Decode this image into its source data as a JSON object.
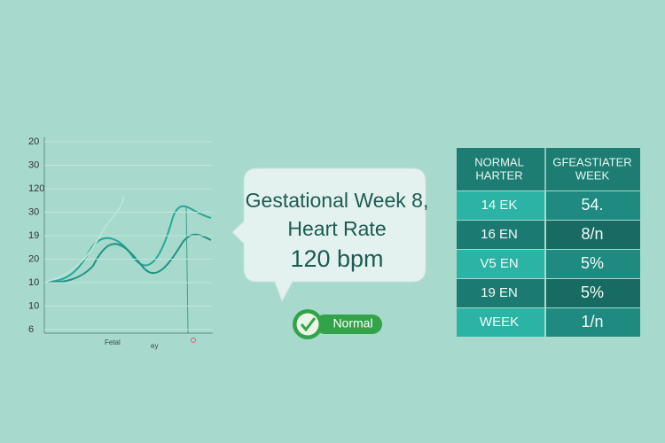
{
  "chart_panel": {
    "y_labels": [
      "20",
      "30",
      "120",
      "30",
      "19",
      "20",
      "10",
      "10",
      "6"
    ],
    "x_labels": [
      "Fetal",
      "ey"
    ]
  },
  "bubble": {
    "lines": [
      "Gestational Week 8,",
      "Heart Rate",
      "120 bpm"
    ]
  },
  "badge": {
    "label": "Normal"
  },
  "table": {
    "header": [
      [
        "NORMAL",
        "HARTER"
      ],
      [
        "GFEASTIATER",
        "WEEK"
      ]
    ],
    "rows": [
      [
        "14 EK",
        "54."
      ],
      [
        "16 EN",
        "8/n"
      ],
      [
        "V5 EN",
        "5%"
      ],
      [
        "19 EN",
        "5%"
      ],
      [
        "WEEK",
        "1/n"
      ]
    ]
  }
}
